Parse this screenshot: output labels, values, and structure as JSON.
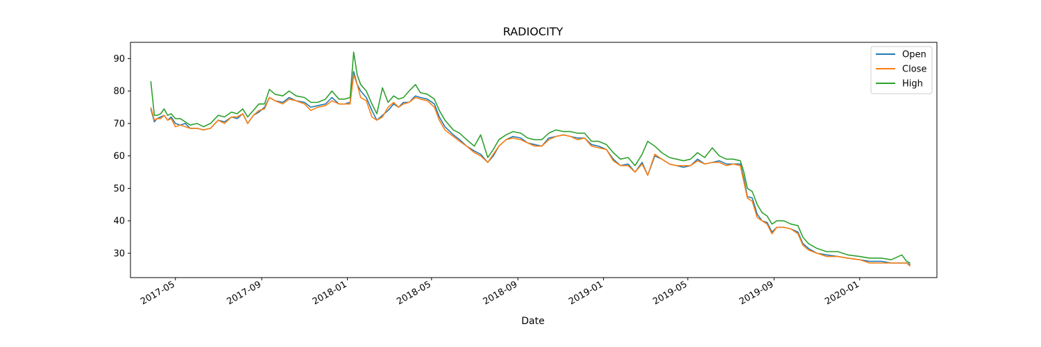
{
  "chart_data": {
    "type": "line",
    "title": "RADIOCITY",
    "xlabel": "Date",
    "ylabel": "",
    "x_ticks": [
      "2017-05",
      "2017-09",
      "2018-01",
      "2018-05",
      "2018-09",
      "2019-01",
      "2019-05",
      "2019-09",
      "2020-01"
    ],
    "y_ticks": [
      30,
      40,
      50,
      60,
      70,
      80,
      90
    ],
    "xlim": [
      "2017-02-26",
      "2020-04-20"
    ],
    "ylim": [
      22.5,
      95.0
    ],
    "grid": false,
    "legend_position": "top-right",
    "x": [
      "2017-03-27",
      "2017-04-01",
      "2017-04-05",
      "2017-04-10",
      "2017-04-15",
      "2017-04-20",
      "2017-04-25",
      "2017-05-01",
      "2017-05-08",
      "2017-05-15",
      "2017-05-22",
      "2017-06-01",
      "2017-06-10",
      "2017-06-20",
      "2017-07-01",
      "2017-07-10",
      "2017-07-20",
      "2017-07-28",
      "2017-08-05",
      "2017-08-12",
      "2017-08-20",
      "2017-08-28",
      "2017-09-05",
      "2017-09-12",
      "2017-09-20",
      "2017-10-01",
      "2017-10-10",
      "2017-10-20",
      "2017-11-01",
      "2017-11-10",
      "2017-11-20",
      "2017-12-01",
      "2017-12-10",
      "2017-12-20",
      "2017-12-28",
      "2018-01-05",
      "2018-01-10",
      "2018-01-15",
      "2018-01-20",
      "2018-01-28",
      "2018-02-05",
      "2018-02-12",
      "2018-02-20",
      "2018-02-28",
      "2018-03-08",
      "2018-03-15",
      "2018-03-22",
      "2018-03-30",
      "2018-04-08",
      "2018-04-15",
      "2018-04-25",
      "2018-05-05",
      "2018-05-12",
      "2018-05-20",
      "2018-06-01",
      "2018-06-10",
      "2018-06-20",
      "2018-07-01",
      "2018-07-10",
      "2018-07-20",
      "2018-07-28",
      "2018-08-05",
      "2018-08-15",
      "2018-08-25",
      "2018-09-05",
      "2018-09-15",
      "2018-09-25",
      "2018-10-05",
      "2018-10-15",
      "2018-10-25",
      "2018-11-05",
      "2018-11-15",
      "2018-11-25",
      "2018-12-05",
      "2018-12-15",
      "2018-12-25",
      "2019-01-05",
      "2019-01-15",
      "2019-01-25",
      "2019-02-05",
      "2019-02-15",
      "2019-02-25",
      "2019-03-05",
      "2019-03-15",
      "2019-03-25",
      "2019-04-05",
      "2019-04-15",
      "2019-04-25",
      "2019-05-05",
      "2019-05-15",
      "2019-05-25",
      "2019-06-05",
      "2019-06-15",
      "2019-06-25",
      "2019-07-05",
      "2019-07-15",
      "2019-07-20",
      "2019-07-25",
      "2019-08-01",
      "2019-08-08",
      "2019-08-15",
      "2019-08-22",
      "2019-08-29",
      "2019-09-05",
      "2019-09-15",
      "2019-09-25",
      "2019-10-05",
      "2019-10-12",
      "2019-10-20",
      "2019-11-01",
      "2019-11-15",
      "2019-12-01",
      "2019-12-15",
      "2020-01-01",
      "2020-01-15",
      "2020-02-01",
      "2020-02-15",
      "2020-03-01",
      "2020-03-08",
      "2020-03-13"
    ],
    "series": [
      {
        "name": "Open",
        "color": "#1f77b4",
        "values": [
          74.5,
          70.5,
          71.5,
          72.0,
          72.5,
          71.0,
          72.0,
          70.0,
          69.5,
          70.0,
          68.5,
          68.5,
          68.0,
          68.5,
          71.0,
          70.5,
          72.0,
          71.5,
          73.0,
          70.0,
          72.5,
          73.5,
          75.0,
          78.0,
          77.0,
          76.5,
          78.0,
          77.0,
          76.5,
          75.0,
          75.5,
          76.0,
          78.0,
          76.0,
          76.0,
          76.5,
          86.0,
          82.0,
          80.0,
          78.0,
          74.0,
          71.0,
          72.5,
          74.0,
          76.0,
          75.0,
          76.5,
          76.5,
          78.5,
          78.0,
          77.5,
          76.0,
          72.0,
          69.0,
          66.5,
          65.0,
          63.0,
          61.5,
          60.5,
          58.0,
          60.0,
          63.0,
          65.0,
          66.0,
          65.5,
          64.0,
          63.5,
          63.0,
          65.5,
          66.0,
          66.5,
          66.0,
          65.5,
          65.5,
          63.5,
          63.0,
          62.0,
          59.0,
          57.0,
          57.5,
          55.0,
          58.0,
          54.0,
          60.0,
          59.0,
          57.5,
          57.0,
          56.5,
          57.0,
          59.0,
          57.5,
          58.0,
          58.5,
          57.5,
          57.5,
          57.5,
          53.0,
          47.5,
          47.0,
          42.0,
          40.0,
          39.5,
          36.5,
          38.0,
          38.0,
          37.5,
          36.5,
          33.0,
          31.5,
          30.0,
          29.5,
          29.0,
          28.5,
          28.0,
          27.5,
          27.5,
          27.0,
          27.0,
          27.0,
          26.5
        ]
      },
      {
        "name": "Close",
        "color": "#ff7f0e",
        "values": [
          75.0,
          71.0,
          71.5,
          71.5,
          72.5,
          71.0,
          71.5,
          69.0,
          69.5,
          69.0,
          68.5,
          68.5,
          68.0,
          68.5,
          71.0,
          70.0,
          72.0,
          72.0,
          73.0,
          70.0,
          72.5,
          74.0,
          74.5,
          78.0,
          77.0,
          76.0,
          77.5,
          77.0,
          76.0,
          74.0,
          75.0,
          75.5,
          77.0,
          76.0,
          76.0,
          76.0,
          85.0,
          82.0,
          78.0,
          77.0,
          72.0,
          71.0,
          72.0,
          75.0,
          76.5,
          75.0,
          76.0,
          76.5,
          78.0,
          77.5,
          77.0,
          75.0,
          71.0,
          68.0,
          66.0,
          64.5,
          63.0,
          61.0,
          60.0,
          58.0,
          60.5,
          63.0,
          65.0,
          65.5,
          65.0,
          64.0,
          63.0,
          63.0,
          65.0,
          66.0,
          66.5,
          66.0,
          65.0,
          65.5,
          63.0,
          62.5,
          62.0,
          58.5,
          57.0,
          57.0,
          55.0,
          57.5,
          54.0,
          60.5,
          59.0,
          57.5,
          57.0,
          57.0,
          57.0,
          58.5,
          57.5,
          58.0,
          58.0,
          57.0,
          57.5,
          57.0,
          52.0,
          47.0,
          46.0,
          41.0,
          40.0,
          39.0,
          36.0,
          38.0,
          38.0,
          37.5,
          36.0,
          32.5,
          31.0,
          30.0,
          29.0,
          29.0,
          28.5,
          28.0,
          27.0,
          27.0,
          27.0,
          27.0,
          27.0,
          26.0
        ]
      },
      {
        "name": "High",
        "color": "#2ca02c",
        "values": [
          83.0,
          72.5,
          72.5,
          73.0,
          74.5,
          72.5,
          73.0,
          71.5,
          71.5,
          70.5,
          69.5,
          70.0,
          69.0,
          70.0,
          72.5,
          72.0,
          73.5,
          73.0,
          74.5,
          72.0,
          74.0,
          76.0,
          76.0,
          80.5,
          79.0,
          78.5,
          80.0,
          78.5,
          78.0,
          76.5,
          76.5,
          77.5,
          80.0,
          77.5,
          77.5,
          78.0,
          92.0,
          85.0,
          82.0,
          80.0,
          76.0,
          73.0,
          81.0,
          76.5,
          78.5,
          77.5,
          78.0,
          80.0,
          82.0,
          79.5,
          79.0,
          77.5,
          74.0,
          71.0,
          68.0,
          67.0,
          65.0,
          63.0,
          66.5,
          59.5,
          62.0,
          65.0,
          66.5,
          67.5,
          67.0,
          65.5,
          65.0,
          65.0,
          67.0,
          68.0,
          67.5,
          67.5,
          67.0,
          67.0,
          64.5,
          64.5,
          63.5,
          61.0,
          59.0,
          59.5,
          57.0,
          60.5,
          64.5,
          63.0,
          61.0,
          59.5,
          59.0,
          58.5,
          59.0,
          61.0,
          59.5,
          62.5,
          60.0,
          59.0,
          59.0,
          58.5,
          55.0,
          50.0,
          49.0,
          45.0,
          42.5,
          41.5,
          39.0,
          40.0,
          40.0,
          39.0,
          38.5,
          35.0,
          33.0,
          31.5,
          30.5,
          30.5,
          29.5,
          29.0,
          28.5,
          28.5,
          28.0,
          29.5,
          27.5,
          27.0
        ]
      }
    ]
  }
}
